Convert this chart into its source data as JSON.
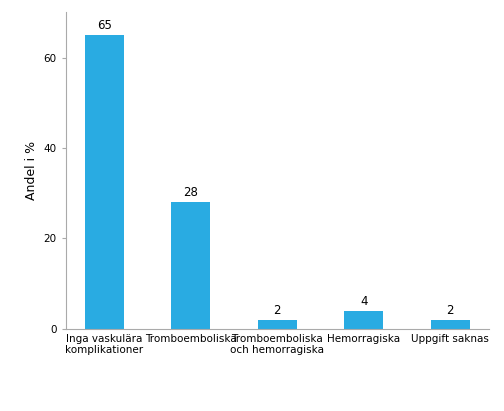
{
  "categories": [
    "Inga vaskulära\nkomplikationer",
    "Tromboemboliska",
    "Tromboemboliska\noch hemorragiska",
    "Hemorragiska",
    "Uppgift saknas"
  ],
  "values": [
    65,
    28,
    2,
    4,
    2
  ],
  "bar_color": "#29ABE2",
  "ylabel": "Andel i %",
  "ylim": [
    0,
    70
  ],
  "yticks": [
    0,
    20,
    40,
    60
  ],
  "background_color": "#ffffff",
  "label_fontsize": 8.5,
  "axis_label_fontsize": 9,
  "tick_fontsize": 7.5,
  "bar_width": 0.45
}
